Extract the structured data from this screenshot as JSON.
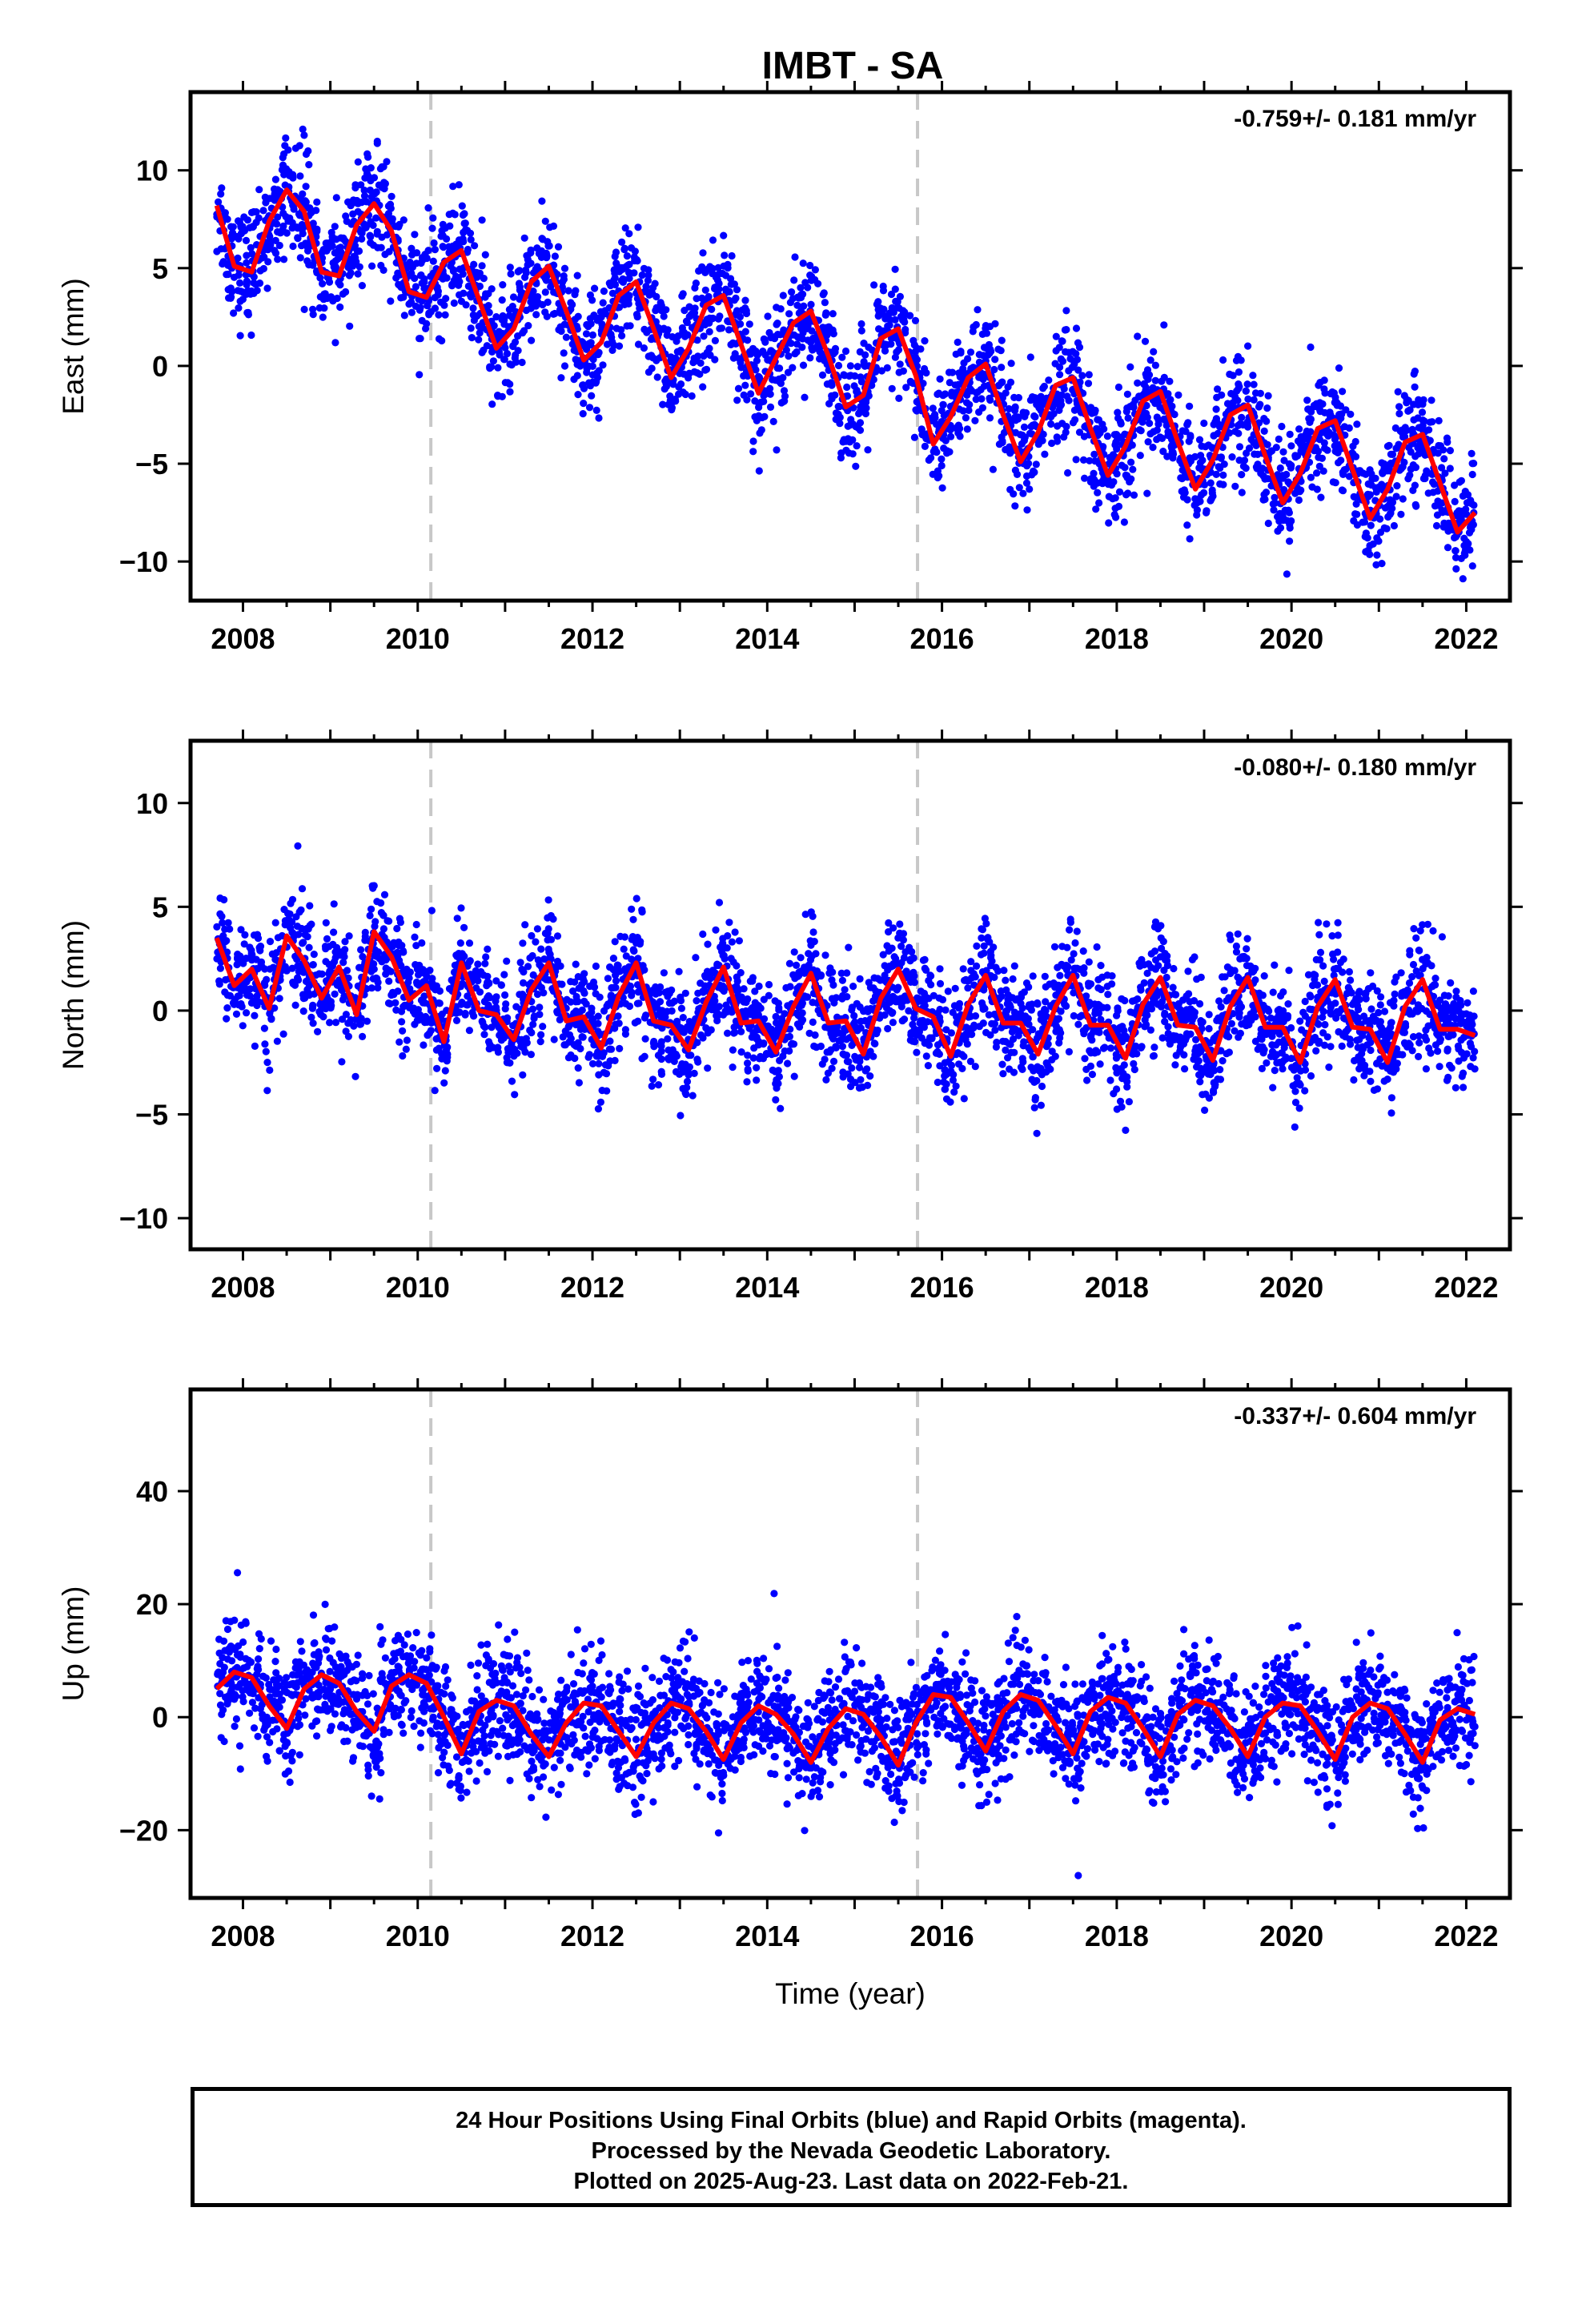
{
  "title": "IMBT - SA",
  "colors": {
    "final_orbits": "#0000ff",
    "rapid_orbits": "#ff00ff",
    "fit": "#ff0000",
    "steps": "#c8c8c8"
  },
  "chart_data": [
    {
      "type": "scatter",
      "ylabel": "East (mm)",
      "rate_label": "-0.759+/- 0.181 mm/yr",
      "xlim": [
        2007.4,
        2022.5
      ],
      "ylim": [
        -12,
        14
      ],
      "xticks": [
        2008,
        2010,
        2012,
        2014,
        2016,
        2018,
        2020,
        2022
      ],
      "yticks": [
        -10,
        -5,
        0,
        5,
        10
      ],
      "ytick_labels": [
        "−10",
        "−5",
        "0",
        "5",
        "10"
      ],
      "vertical_lines": [
        2010.15,
        2015.72
      ],
      "series": [
        {
          "marker": "points",
          "color": "#0000ff",
          "x": [
            2007.7,
            2007.9,
            2008.1,
            2008.3,
            2008.5,
            2008.7,
            2008.9,
            2009.1,
            2009.3,
            2009.5,
            2009.7,
            2009.9,
            2010.1,
            2010.3,
            2010.5,
            2010.7,
            2010.9,
            2011.1,
            2011.3,
            2011.5,
            2011.7,
            2011.9,
            2012.1,
            2012.3,
            2012.5,
            2012.7,
            2012.9,
            2013.1,
            2013.3,
            2013.5,
            2013.7,
            2013.9,
            2014.1,
            2014.3,
            2014.5,
            2014.7,
            2014.9,
            2015.1,
            2015.3,
            2015.5,
            2015.7,
            2015.9,
            2016.1,
            2016.3,
            2016.5,
            2016.7,
            2016.9,
            2017.1,
            2017.3,
            2017.5,
            2017.7,
            2017.9,
            2018.1,
            2018.3,
            2018.5,
            2018.7,
            2018.9,
            2019.1,
            2019.3,
            2019.5,
            2019.7,
            2019.9,
            2020.1,
            2020.3,
            2020.5,
            2020.7,
            2020.9,
            2021.1,
            2021.3,
            2021.5,
            2021.7,
            2021.9,
            2022.1
          ],
          "y": [
            8.2,
            5.1,
            4.8,
            7.4,
            9.0,
            7.9,
            4.8,
            4.6,
            7.2,
            8.3,
            6.9,
            3.8,
            3.5,
            5.3,
            5.9,
            3.4,
            0.9,
            1.9,
            4.3,
            5.1,
            2.8,
            0.3,
            1.2,
            3.6,
            4.3,
            1.9,
            -0.6,
            0.9,
            3.1,
            3.6,
            1.1,
            -1.4,
            0.4,
            2.2,
            2.8,
            0.5,
            -2.1,
            -1.5,
            1.4,
            1.9,
            -0.5,
            -4.0,
            -2.6,
            -0.6,
            0.1,
            -2.5,
            -4.9,
            -3.4,
            -1.0,
            -0.6,
            -3.2,
            -5.6,
            -4.1,
            -1.8,
            -1.3,
            -3.9,
            -6.3,
            -4.8,
            -2.5,
            -2.0,
            -4.6,
            -7.0,
            -5.5,
            -3.2,
            -2.8,
            -5.3,
            -7.8,
            -6.3,
            -3.9,
            -3.5,
            -6.0,
            -8.5,
            -7.5
          ]
        },
        {
          "marker": "line",
          "color": "#ff0000",
          "x": [
            2007.7,
            2007.9,
            2008.1,
            2008.3,
            2008.5,
            2008.7,
            2008.9,
            2009.1,
            2009.3,
            2009.5,
            2009.7,
            2009.9,
            2010.1,
            2010.3,
            2010.5,
            2010.7,
            2010.9,
            2011.1,
            2011.3,
            2011.5,
            2011.7,
            2011.9,
            2012.1,
            2012.3,
            2012.5,
            2012.7,
            2012.9,
            2013.1,
            2013.3,
            2013.5,
            2013.7,
            2013.9,
            2014.1,
            2014.3,
            2014.5,
            2014.7,
            2014.9,
            2015.1,
            2015.3,
            2015.5,
            2015.7,
            2015.9,
            2016.1,
            2016.3,
            2016.5,
            2016.7,
            2016.9,
            2017.1,
            2017.3,
            2017.5,
            2017.7,
            2017.9,
            2018.1,
            2018.3,
            2018.5,
            2018.7,
            2018.9,
            2019.1,
            2019.3,
            2019.5,
            2019.7,
            2019.9,
            2020.1,
            2020.3,
            2020.5,
            2020.7,
            2020.9,
            2021.1,
            2021.3,
            2021.5,
            2021.7,
            2021.9,
            2022.1
          ],
          "y": [
            8.2,
            5.1,
            4.8,
            7.4,
            9.0,
            7.9,
            4.8,
            4.6,
            7.2,
            8.3,
            6.9,
            3.8,
            3.5,
            5.3,
            5.9,
            3.4,
            0.9,
            1.9,
            4.3,
            5.1,
            2.8,
            0.3,
            1.2,
            3.6,
            4.3,
            1.9,
            -0.6,
            0.9,
            3.1,
            3.6,
            1.1,
            -1.4,
            0.4,
            2.2,
            2.8,
            0.5,
            -2.1,
            -1.5,
            1.4,
            1.9,
            -0.5,
            -4.0,
            -2.6,
            -0.6,
            0.1,
            -2.5,
            -4.9,
            -3.4,
            -1.0,
            -0.6,
            -3.2,
            -5.6,
            -4.1,
            -1.8,
            -1.3,
            -3.9,
            -6.3,
            -4.8,
            -2.5,
            -2.0,
            -4.6,
            -7.0,
            -5.5,
            -3.2,
            -2.8,
            -5.3,
            -7.8,
            -6.3,
            -3.9,
            -3.5,
            -6.0,
            -8.5,
            -7.5
          ]
        }
      ]
    },
    {
      "type": "scatter",
      "ylabel": "North (mm)",
      "rate_label": "-0.080+/- 0.180 mm/yr",
      "xlim": [
        2007.4,
        2022.5
      ],
      "ylim": [
        -11.5,
        13
      ],
      "xticks": [
        2008,
        2010,
        2012,
        2014,
        2016,
        2018,
        2020,
        2022
      ],
      "yticks": [
        -10,
        -5,
        0,
        5,
        10
      ],
      "ytick_labels": [
        "−10",
        "−5",
        "0",
        "5",
        "10"
      ],
      "vertical_lines": [
        2010.15,
        2015.72
      ],
      "series": [
        {
          "marker": "points",
          "color": "#0000ff",
          "x": [
            2007.7,
            2007.9,
            2008.1,
            2008.3,
            2008.5,
            2008.7,
            2008.9,
            2009.1,
            2009.3,
            2009.5,
            2009.7,
            2009.9,
            2010.1,
            2010.3,
            2010.5,
            2010.7,
            2010.9,
            2011.1,
            2011.3,
            2011.5,
            2011.7,
            2011.9,
            2012.1,
            2012.3,
            2012.5,
            2012.7,
            2012.9,
            2013.1,
            2013.3,
            2013.5,
            2013.7,
            2013.9,
            2014.1,
            2014.3,
            2014.5,
            2014.7,
            2014.9,
            2015.1,
            2015.3,
            2015.5,
            2015.7,
            2015.9,
            2016.1,
            2016.3,
            2016.5,
            2016.7,
            2016.9,
            2017.1,
            2017.3,
            2017.5,
            2017.7,
            2017.9,
            2018.1,
            2018.3,
            2018.5,
            2018.7,
            2018.9,
            2019.1,
            2019.3,
            2019.5,
            2019.7,
            2019.9,
            2020.1,
            2020.3,
            2020.5,
            2020.7,
            2020.9,
            2021.1,
            2021.3,
            2021.5,
            2021.7,
            2021.9,
            2022.1
          ],
          "y": [
            3.5,
            1.2,
            2.0,
            0.1,
            3.6,
            2.4,
            0.6,
            2.1,
            -0.2,
            3.8,
            2.6,
            0.5,
            1.2,
            -1.5,
            2.3,
            0.0,
            -0.2,
            -1.4,
            1.0,
            2.3,
            -0.5,
            -0.3,
            -1.8,
            0.7,
            2.3,
            -0.5,
            -0.7,
            -1.9,
            0.4,
            2.1,
            -0.6,
            -0.5,
            -2.0,
            0.2,
            1.8,
            -0.6,
            -0.5,
            -2.1,
            0.6,
            2.0,
            0.1,
            -0.3,
            -2.2,
            0.3,
            1.7,
            -0.6,
            -0.6,
            -2.1,
            0.2,
            1.7,
            -0.7,
            -0.7,
            -2.3,
            0.3,
            1.6,
            -0.7,
            -0.8,
            -2.4,
            0.2,
            1.6,
            -0.8,
            -0.8,
            -2.5,
            0.2,
            1.5,
            -0.8,
            -0.9,
            -2.5,
            0.2,
            1.5,
            -0.9,
            -0.9,
            -1.2
          ]
        },
        {
          "marker": "line",
          "color": "#ff0000",
          "x": [
            2007.7,
            2007.9,
            2008.1,
            2008.3,
            2008.5,
            2008.7,
            2008.9,
            2009.1,
            2009.3,
            2009.5,
            2009.7,
            2009.9,
            2010.1,
            2010.3,
            2010.5,
            2010.7,
            2010.9,
            2011.1,
            2011.3,
            2011.5,
            2011.7,
            2011.9,
            2012.1,
            2012.3,
            2012.5,
            2012.7,
            2012.9,
            2013.1,
            2013.3,
            2013.5,
            2013.7,
            2013.9,
            2014.1,
            2014.3,
            2014.5,
            2014.7,
            2014.9,
            2015.1,
            2015.3,
            2015.5,
            2015.7,
            2015.9,
            2016.1,
            2016.3,
            2016.5,
            2016.7,
            2016.9,
            2017.1,
            2017.3,
            2017.5,
            2017.7,
            2017.9,
            2018.1,
            2018.3,
            2018.5,
            2018.7,
            2018.9,
            2019.1,
            2019.3,
            2019.5,
            2019.7,
            2019.9,
            2020.1,
            2020.3,
            2020.5,
            2020.7,
            2020.9,
            2021.1,
            2021.3,
            2021.5,
            2021.7,
            2021.9,
            2022.1
          ],
          "y": [
            3.5,
            1.2,
            2.0,
            0.1,
            3.6,
            2.4,
            0.6,
            2.1,
            -0.2,
            3.8,
            2.6,
            0.5,
            1.2,
            -1.5,
            2.3,
            0.0,
            -0.2,
            -1.4,
            1.0,
            2.3,
            -0.5,
            -0.3,
            -1.8,
            0.7,
            2.3,
            -0.5,
            -0.7,
            -1.9,
            0.4,
            2.1,
            -0.6,
            -0.5,
            -2.0,
            0.2,
            1.8,
            -0.6,
            -0.5,
            -2.1,
            0.6,
            2.0,
            0.1,
            -0.3,
            -2.2,
            0.3,
            1.7,
            -0.6,
            -0.6,
            -2.1,
            0.2,
            1.7,
            -0.7,
            -0.7,
            -2.3,
            0.3,
            1.6,
            -0.7,
            -0.8,
            -2.4,
            0.2,
            1.6,
            -0.8,
            -0.8,
            -2.5,
            0.2,
            1.5,
            -0.8,
            -0.9,
            -2.5,
            0.2,
            1.5,
            -0.9,
            -0.9,
            -1.2
          ]
        }
      ]
    },
    {
      "type": "scatter",
      "ylabel": "Up (mm)",
      "rate_label": "-0.337+/- 0.604 mm/yr",
      "xlim": [
        2007.4,
        2022.5
      ],
      "ylim": [
        -32,
        58
      ],
      "xticks": [
        2008,
        2010,
        2012,
        2014,
        2016,
        2018,
        2020,
        2022
      ],
      "yticks": [
        -20,
        0,
        20,
        40
      ],
      "ytick_labels": [
        "−20",
        "0",
        "20",
        "40"
      ],
      "xlabel": "Time (year)",
      "vertical_lines": [
        2010.15,
        2015.72
      ],
      "series": [
        {
          "marker": "points",
          "color": "#0000ff",
          "x": [
            2007.7,
            2007.9,
            2008.1,
            2008.3,
            2008.5,
            2008.7,
            2008.9,
            2009.1,
            2009.3,
            2009.5,
            2009.7,
            2009.9,
            2010.1,
            2010.3,
            2010.5,
            2010.7,
            2010.9,
            2011.1,
            2011.3,
            2011.5,
            2011.7,
            2011.9,
            2012.1,
            2012.3,
            2012.5,
            2012.7,
            2012.9,
            2013.1,
            2013.3,
            2013.5,
            2013.7,
            2013.9,
            2014.1,
            2014.3,
            2014.5,
            2014.7,
            2014.9,
            2015.1,
            2015.3,
            2015.5,
            2015.7,
            2015.9,
            2016.1,
            2016.3,
            2016.5,
            2016.7,
            2016.9,
            2017.1,
            2017.3,
            2017.5,
            2017.7,
            2017.9,
            2018.1,
            2018.3,
            2018.5,
            2018.7,
            2018.9,
            2019.1,
            2019.3,
            2019.5,
            2019.7,
            2019.9,
            2020.1,
            2020.3,
            2020.5,
            2020.7,
            2020.9,
            2021.1,
            2021.3,
            2021.5,
            2021.7,
            2021.9,
            2022.1
          ],
          "y": [
            5.0,
            8.0,
            7.0,
            2.0,
            -2.0,
            5.0,
            7.5,
            6.0,
            1.0,
            -2.5,
            5.5,
            7.5,
            6.0,
            0.0,
            -6.5,
            1.0,
            3.0,
            2.0,
            -3.0,
            -7.0,
            -1.0,
            2.5,
            2.0,
            -2.5,
            -7.0,
            -1.0,
            2.5,
            1.5,
            -2.5,
            -7.5,
            -1.0,
            2.0,
            0.5,
            -3.0,
            -8.0,
            -2.0,
            1.5,
            0.5,
            -3.5,
            -8.5,
            -1.0,
            4.0,
            3.5,
            -1.0,
            -6.0,
            1.0,
            4.0,
            3.0,
            -1.5,
            -6.5,
            1.0,
            3.5,
            2.5,
            -2.0,
            -7.0,
            0.5,
            3.0,
            2.0,
            -2.0,
            -7.0,
            0.0,
            2.5,
            2.0,
            -2.5,
            -7.5,
            0.0,
            2.5,
            1.5,
            -3.0,
            -8.0,
            -0.5,
            1.5,
            0.5
          ]
        },
        {
          "marker": "line",
          "color": "#ff0000",
          "x": [
            2007.7,
            2007.9,
            2008.1,
            2008.3,
            2008.5,
            2008.7,
            2008.9,
            2009.1,
            2009.3,
            2009.5,
            2009.7,
            2009.9,
            2010.1,
            2010.3,
            2010.5,
            2010.7,
            2010.9,
            2011.1,
            2011.3,
            2011.5,
            2011.7,
            2011.9,
            2012.1,
            2012.3,
            2012.5,
            2012.7,
            2012.9,
            2013.1,
            2013.3,
            2013.5,
            2013.7,
            2013.9,
            2014.1,
            2014.3,
            2014.5,
            2014.7,
            2014.9,
            2015.1,
            2015.3,
            2015.5,
            2015.7,
            2015.9,
            2016.1,
            2016.3,
            2016.5,
            2016.7,
            2016.9,
            2017.1,
            2017.3,
            2017.5,
            2017.7,
            2017.9,
            2018.1,
            2018.3,
            2018.5,
            2018.7,
            2018.9,
            2019.1,
            2019.3,
            2019.5,
            2019.7,
            2019.9,
            2020.1,
            2020.3,
            2020.5,
            2020.7,
            2020.9,
            2021.1,
            2021.3,
            2021.5,
            2021.7,
            2021.9,
            2022.1
          ],
          "y": [
            5.0,
            8.0,
            7.0,
            2.0,
            -2.0,
            5.0,
            7.5,
            6.0,
            1.0,
            -2.5,
            5.5,
            7.5,
            6.0,
            0.0,
            -6.5,
            1.0,
            3.0,
            2.0,
            -3.0,
            -7.0,
            -1.0,
            2.5,
            2.0,
            -2.5,
            -7.0,
            -1.0,
            2.5,
            1.5,
            -2.5,
            -7.5,
            -1.0,
            2.0,
            0.5,
            -3.0,
            -8.0,
            -2.0,
            1.5,
            0.5,
            -3.5,
            -8.5,
            -1.0,
            4.0,
            3.5,
            -1.0,
            -6.0,
            1.0,
            4.0,
            3.0,
            -1.5,
            -6.5,
            1.0,
            3.5,
            2.5,
            -2.0,
            -7.0,
            0.5,
            3.0,
            2.0,
            -2.0,
            -7.0,
            0.0,
            2.5,
            2.0,
            -2.5,
            -7.5,
            0.0,
            2.5,
            1.5,
            -3.0,
            -8.0,
            -0.5,
            1.5,
            0.5
          ]
        }
      ]
    }
  ],
  "footer": {
    "line1": "24 Hour Positions Using Final Orbits (blue) and Rapid Orbits (magenta).",
    "line2": "Processed by the Nevada Geodetic Laboratory.",
    "line3": "Plotted on 2025-Aug-23. Last data on 2022-Feb-21."
  }
}
